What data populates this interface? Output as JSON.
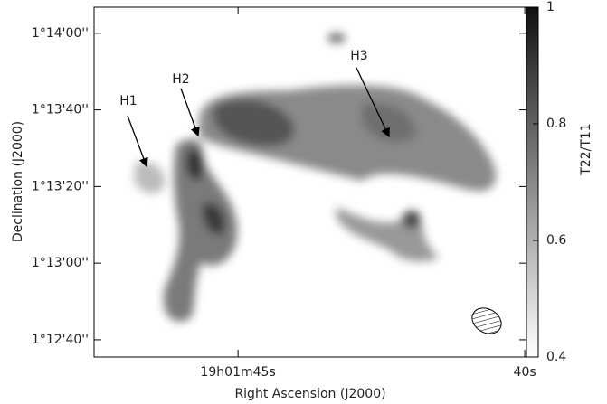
{
  "chart_data": {
    "type": "image",
    "xlabel": "Right Ascension (J2000)",
    "ylabel": "Declination (J2000)",
    "xlim": [
      47.51,
      39.97
    ],
    "xticks": [
      {
        "value": 45,
        "label": "19h01m45s"
      },
      {
        "value": 40,
        "label": "40s"
      }
    ],
    "ylim": [
      755.5,
      846.8
    ],
    "yticks": [
      {
        "value": 840,
        "label": "1°14'00''"
      },
      {
        "value": 820,
        "label": "1°13'40''"
      },
      {
        "value": 800,
        "label": "1°13'20''"
      },
      {
        "value": 780,
        "label": "1°13'00''"
      },
      {
        "value": 760,
        "label": "1°12'40''"
      }
    ],
    "colorbar": {
      "label": "T22/T11",
      "lim": [
        0.4,
        1
      ],
      "ticks": [
        0.4,
        0.6,
        0.8,
        1
      ]
    },
    "annotations": [
      "H1",
      "H2",
      "H3"
    ]
  }
}
